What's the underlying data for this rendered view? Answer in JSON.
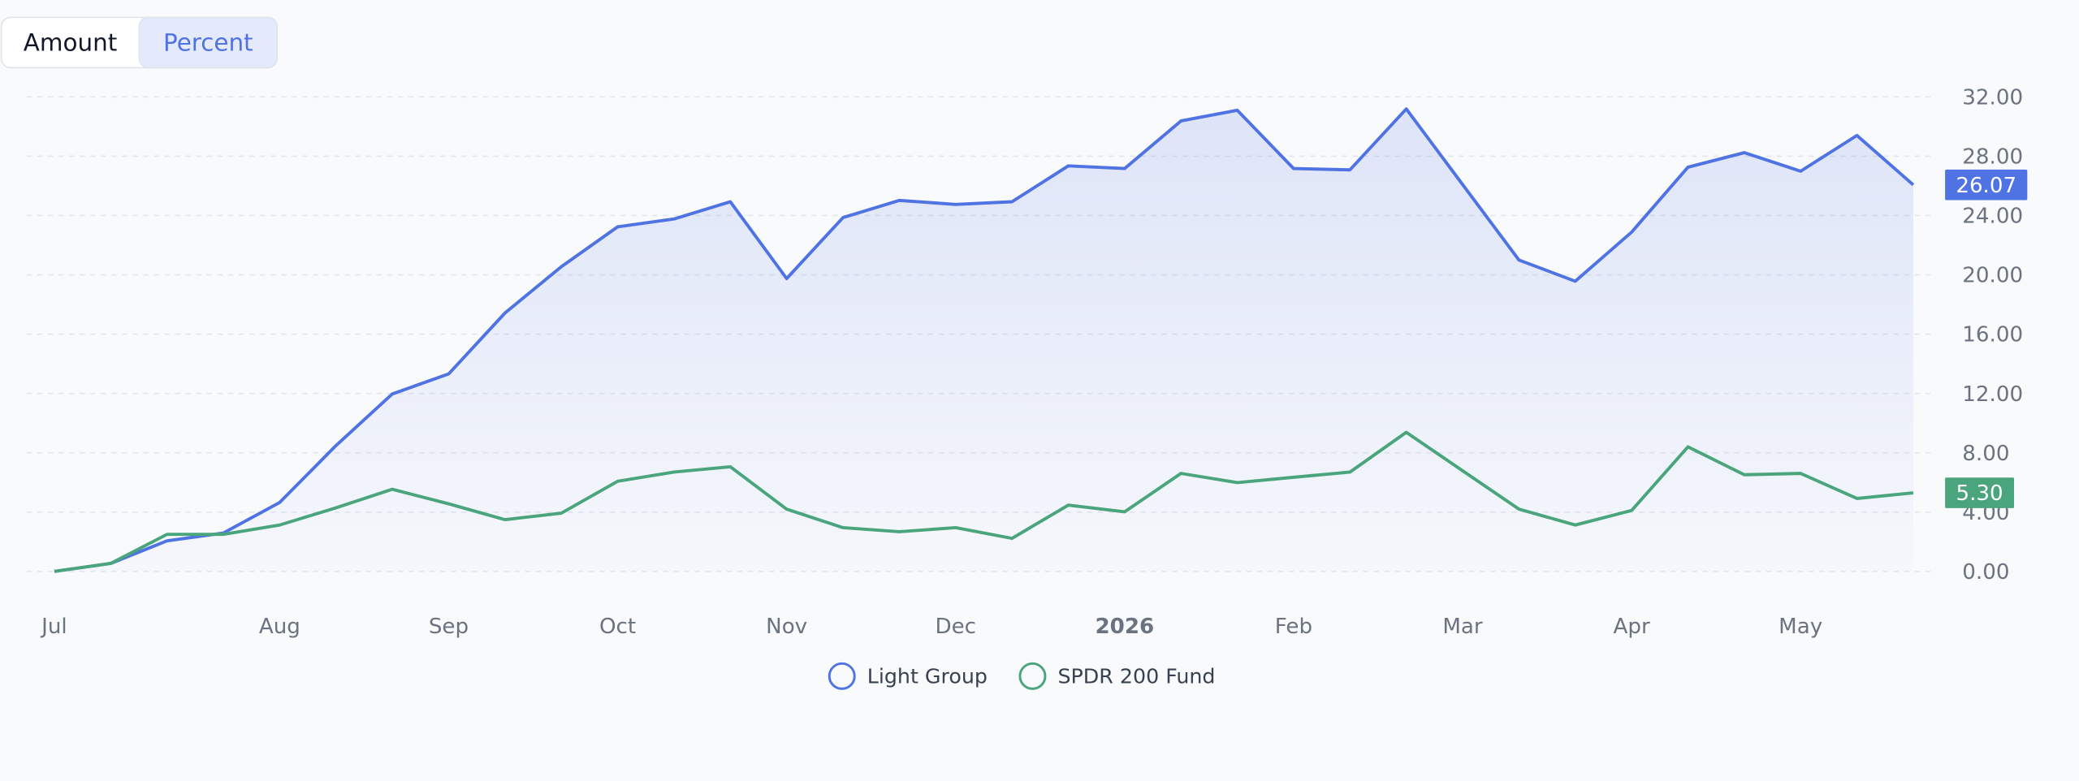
{
  "toggle": {
    "options": [
      "Amount",
      "Percent"
    ],
    "selected": 1
  },
  "chart_data": {
    "type": "line",
    "categories": [
      "Jul",
      null,
      null,
      null,
      "Aug",
      null,
      null,
      "Sep",
      null,
      null,
      "Oct",
      null,
      null,
      "Nov",
      null,
      null,
      "Dec",
      null,
      null,
      "2026",
      null,
      null,
      "Feb",
      null,
      null,
      "Mar",
      null,
      null,
      "Apr",
      null,
      null,
      "May",
      null,
      null
    ],
    "series": [
      {
        "name": "Light Group",
        "color": "#4f73e3",
        "fill_area": true,
        "values": [
          0,
          0.54,
          2.06,
          2.59,
          4.65,
          8.49,
          11.97,
          13.32,
          17.43,
          20.55,
          23.24,
          23.77,
          24.93,
          19.75,
          23.86,
          25.02,
          24.75,
          24.93,
          27.35,
          27.17,
          30.38,
          31.1,
          27.17,
          27.08,
          31.19,
          26.09,
          21.0,
          19.57,
          22.88,
          27.26,
          28.24,
          26.99,
          29.4,
          26.07
        ],
        "value_labels": [
          null,
          null,
          null,
          null,
          null,
          null,
          null,
          null,
          null,
          null,
          null,
          null,
          null,
          null,
          null,
          null,
          null,
          null,
          null,
          null,
          null,
          null,
          null,
          null,
          null,
          null,
          null,
          null,
          null,
          null,
          null,
          null,
          null,
          "26.07"
        ]
      },
      {
        "name": "SPDR 200 Fund",
        "color": "#4aa57c",
        "fill_area": false,
        "values": [
          0,
          0.54,
          2.5,
          2.5,
          3.13,
          4.29,
          5.54,
          4.56,
          3.49,
          3.93,
          6.08,
          6.7,
          7.06,
          4.2,
          2.95,
          2.68,
          2.95,
          2.23,
          4.47,
          4.02,
          6.61,
          5.99,
          6.35,
          6.7,
          9.38,
          6.79,
          4.2,
          3.13,
          4.11,
          8.4,
          6.52,
          6.61,
          4.92,
          5.3
        ],
        "value_labels": [
          null,
          null,
          null,
          null,
          null,
          null,
          null,
          null,
          null,
          null,
          null,
          null,
          null,
          null,
          null,
          null,
          null,
          null,
          null,
          null,
          null,
          null,
          null,
          null,
          null,
          null,
          null,
          null,
          null,
          null,
          null,
          null,
          null,
          "5.30"
        ]
      }
    ],
    "ylim": [
      0,
      32
    ],
    "yticks": [
      {
        "value": 0,
        "label": "0.00"
      },
      {
        "value": 4,
        "label": "4.00"
      },
      {
        "value": 8,
        "label": "8.00"
      },
      {
        "value": 12,
        "label": "12.00"
      },
      {
        "value": 16,
        "label": "16.00"
      },
      {
        "value": 20,
        "label": "20.00"
      },
      {
        "value": 24,
        "label": "24.00"
      },
      {
        "value": 28,
        "label": "28.00"
      },
      {
        "value": 32,
        "label": "32.00"
      }
    ],
    "grid": true,
    "bold_categories": [
      19
    ]
  }
}
